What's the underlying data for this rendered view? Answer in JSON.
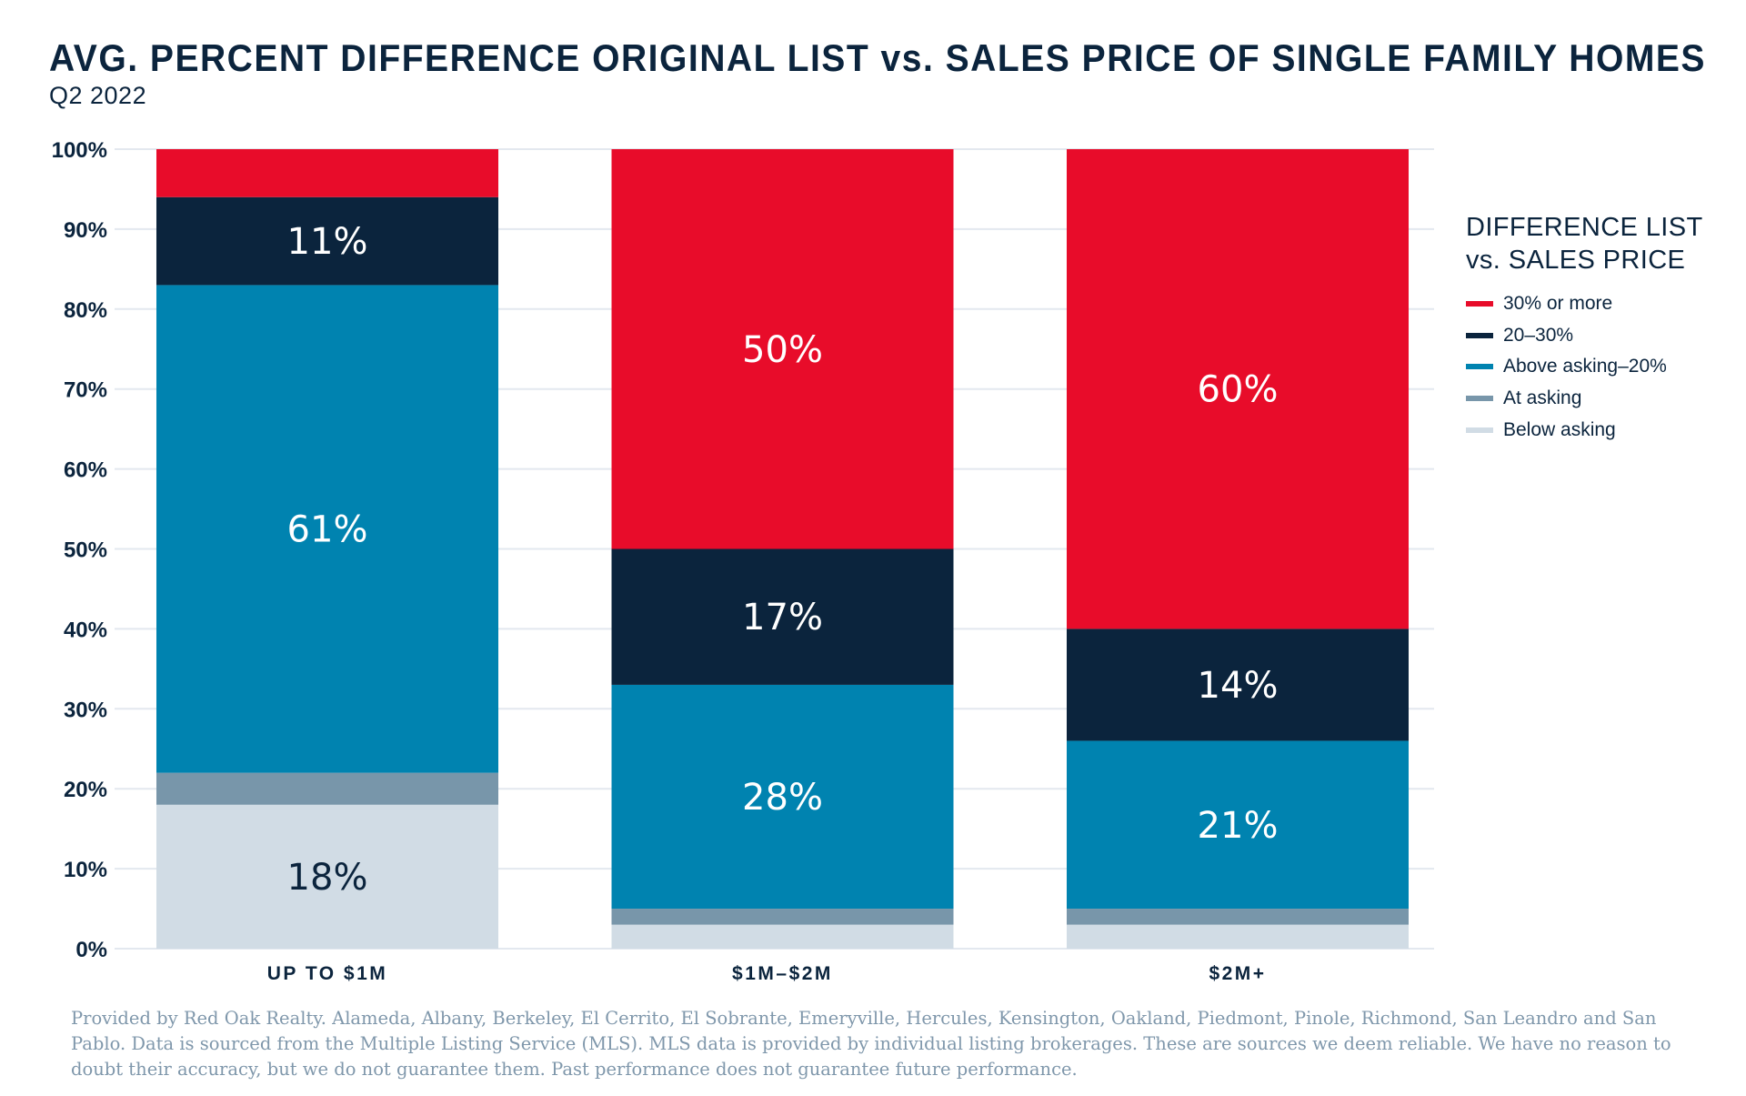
{
  "header": {
    "title": "AVG. PERCENT DIFFERENCE ORIGINAL LIST vs. SALES PRICE OF SINGLE FAMILY HOMES",
    "subtitle": "Q2 2022"
  },
  "legend": {
    "title_line1": "DIFFERENCE LIST",
    "title_line2": "vs. SALES PRICE"
  },
  "footnote": "Provided by Red Oak Realty. Alameda, Albany, Berkeley, El Cerrito, El Sobrante, Emeryville, Hercules, Kensington, Oakland, Piedmont, Pinole, Richmond, San Leandro and San Pablo. Data is sourced from the Multiple Listing Service (MLS). MLS data is provided by individual listing brokerages. These are sources we deem reliable. We have no reason to doubt their accuracy, but we do not guarantee them. Past performance does not guarantee future performance.",
  "chart_data": {
    "type": "bar",
    "stacked": true,
    "title": "AVG. PERCENT DIFFERENCE ORIGINAL LIST vs. SALES PRICE OF SINGLE FAMILY HOMES",
    "subtitle": "Q2 2022",
    "xlabel": "",
    "ylabel": "",
    "ylim": [
      0,
      100
    ],
    "yticks": [
      0,
      10,
      20,
      30,
      40,
      50,
      60,
      70,
      80,
      90,
      100
    ],
    "ytick_labels": [
      "0%",
      "10%",
      "20%",
      "30%",
      "40%",
      "50%",
      "60%",
      "70%",
      "80%",
      "90%",
      "100%"
    ],
    "grid": true,
    "legend_position": "right",
    "legend_title": "DIFFERENCE LIST vs. SALES PRICE",
    "categories": [
      "UP TO $1M",
      "$1M–$2M",
      "$2M+"
    ],
    "series": [
      {
        "name": "Below asking",
        "color": "#d1dce5",
        "label_color": "#0b243d",
        "values": [
          18,
          3,
          3
        ],
        "labels": [
          "18%",
          null,
          null
        ]
      },
      {
        "name": "At asking",
        "color": "#7896aa",
        "label_color": "#ffffff",
        "values": [
          4,
          2,
          2
        ],
        "labels": [
          null,
          null,
          null
        ]
      },
      {
        "name": "Above asking–20%",
        "color": "#0083b0",
        "label_color": "#ffffff",
        "values": [
          61,
          28,
          21
        ],
        "labels": [
          "61%",
          "28%",
          "21%"
        ]
      },
      {
        "name": "20–30%",
        "color": "#0b243d",
        "label_color": "#ffffff",
        "values": [
          11,
          17,
          14
        ],
        "labels": [
          "11%",
          "17%",
          "14%"
        ]
      },
      {
        "name": "30% or more",
        "color": "#e80c2a",
        "label_color": "#ffffff",
        "values": [
          6,
          50,
          60
        ],
        "labels": [
          null,
          "50%",
          "60%"
        ]
      }
    ],
    "legend_order": [
      "30% or more",
      "20–30%",
      "Above asking–20%",
      "At asking",
      "Below asking"
    ],
    "annotations": []
  }
}
